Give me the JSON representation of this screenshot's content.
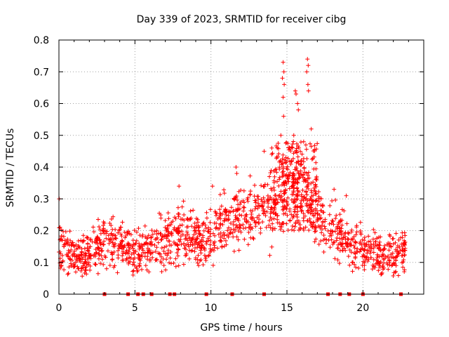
{
  "chart_data": {
    "type": "scatter",
    "title": "Day 339 of 2023, SRMTID for receiver cibg",
    "xlabel": "GPS time / hours",
    "ylabel": "SRMTID / TECUs",
    "xlim": [
      0,
      24
    ],
    "ylim": [
      0,
      0.8
    ],
    "xticks": [
      0,
      5,
      10,
      15,
      20
    ],
    "yticks": [
      0,
      0.1,
      0.2,
      0.3,
      0.4,
      0.5,
      0.6,
      0.7,
      0.8
    ],
    "xtick_labels": [
      "0",
      "5",
      "10",
      "15",
      "20"
    ],
    "ytick_labels": [
      "0",
      "0.1",
      "0.2",
      "0.3",
      "0.4",
      "0.5",
      "0.6",
      "0.7",
      "0.8"
    ],
    "grid": true,
    "marker": "+",
    "series_color": "#ff0000",
    "envelope": {
      "x": [
        0,
        1,
        2,
        3,
        4,
        5,
        6,
        7,
        8,
        9,
        10,
        11,
        12,
        13,
        14,
        14.5,
        15,
        15.5,
        16,
        16.5,
        17,
        18,
        19,
        20,
        21,
        22,
        22.8
      ],
      "y": [
        0.15,
        0.12,
        0.13,
        0.17,
        0.16,
        0.13,
        0.15,
        0.17,
        0.2,
        0.17,
        0.18,
        0.22,
        0.24,
        0.25,
        0.28,
        0.32,
        0.34,
        0.36,
        0.33,
        0.28,
        0.24,
        0.2,
        0.17,
        0.15,
        0.12,
        0.12,
        0.13
      ]
    },
    "spikes": [
      {
        "x": 14.75,
        "y": 0.73
      },
      {
        "x": 14.8,
        "y": 0.7
      },
      {
        "x": 14.7,
        "y": 0.68
      },
      {
        "x": 14.82,
        "y": 0.66
      },
      {
        "x": 14.75,
        "y": 0.62
      },
      {
        "x": 14.78,
        "y": 0.56
      },
      {
        "x": 15.55,
        "y": 0.64
      },
      {
        "x": 15.6,
        "y": 0.63
      },
      {
        "x": 15.7,
        "y": 0.6
      },
      {
        "x": 15.75,
        "y": 0.58
      },
      {
        "x": 16.35,
        "y": 0.74
      },
      {
        "x": 16.4,
        "y": 0.72
      },
      {
        "x": 16.3,
        "y": 0.7
      },
      {
        "x": 16.38,
        "y": 0.66
      },
      {
        "x": 16.42,
        "y": 0.64
      },
      {
        "x": 14.6,
        "y": 0.5
      },
      {
        "x": 15.2,
        "y": 0.46
      },
      {
        "x": 15.45,
        "y": 0.5
      },
      {
        "x": 16.1,
        "y": 0.48
      },
      {
        "x": 13.5,
        "y": 0.45
      },
      {
        "x": 14.0,
        "y": 0.44
      },
      {
        "x": 16.6,
        "y": 0.52
      },
      {
        "x": 11.65,
        "y": 0.4
      },
      {
        "x": 11.7,
        "y": 0.38
      },
      {
        "x": 7.9,
        "y": 0.34
      },
      {
        "x": 10.1,
        "y": 0.34
      },
      {
        "x": 0.02,
        "y": 0.3
      },
      {
        "x": 18.1,
        "y": 0.33
      },
      {
        "x": 18.9,
        "y": 0.31
      }
    ],
    "gap_markers_x": [
      3.0,
      4.55,
      5.2,
      5.55,
      6.1,
      7.3,
      7.6,
      9.7,
      11.4,
      13.5,
      17.7,
      18.5,
      19.1,
      20.0,
      22.5
    ]
  }
}
